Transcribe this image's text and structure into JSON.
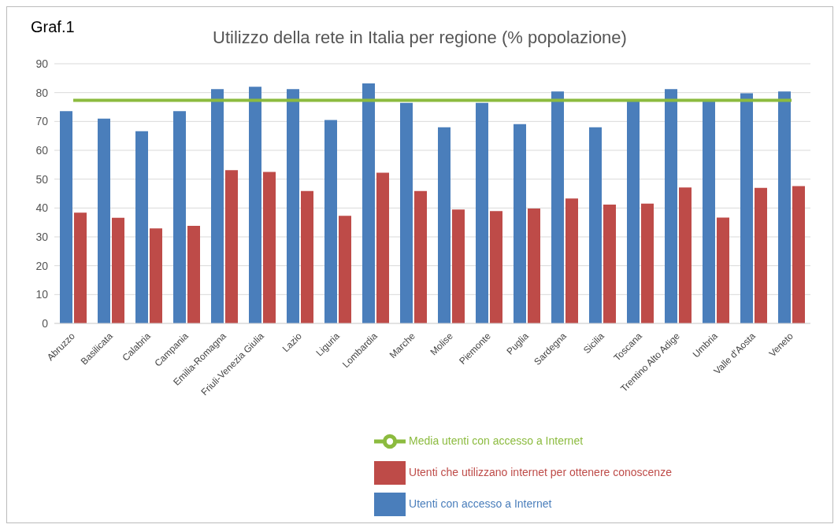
{
  "chart_data": {
    "type": "bar",
    "title": "Utilizzo della rete in Italia per regione (% popolazione)",
    "annotations": [
      "Graf.1"
    ],
    "categories": [
      "Abruzzo",
      "Basilicata",
      "Calabria",
      "Campania",
      "Emilia-Romagna",
      "Friuli-Venezia Giulia",
      "Lazio",
      "Liguria",
      "Lombardia",
      "Marche",
      "Molise",
      "Piemonte",
      "Puglia",
      "Sardegna",
      "Sicilia",
      "Toscana",
      "Trentino Alto Adige",
      "Umbria",
      "Valle d'Aosta",
      "Veneto"
    ],
    "series": [
      {
        "name": "Utenti con accesso a Internet",
        "color": "#4a7ebb",
        "values": [
          73.6,
          71,
          66.6,
          73.6,
          81.2,
          82,
          81.2,
          70.5,
          83.2,
          76.4,
          68,
          76.4,
          69.1,
          80.4,
          68,
          77.3,
          81.2,
          77.2,
          79.8,
          80.4
        ]
      },
      {
        "name": "Utenti che utilizzano internet per ottenere conoscenze",
        "color": "#be4b48",
        "values": [
          38.4,
          36.6,
          32.9,
          33.8,
          53.1,
          52.5,
          45.9,
          37.3,
          52.2,
          45.9,
          39.5,
          38.9,
          39.8,
          43.3,
          41.2,
          41.5,
          47.1,
          36.7,
          47,
          47.6
        ]
      },
      {
        "name": "Media utenti con accesso a Internet",
        "type": "line",
        "color": "#8cbb3f",
        "marker": "none",
        "line_style": "solid",
        "values": [
          77.3,
          77.3,
          77.3,
          77.3,
          77.3,
          77.3,
          77.3,
          77.3,
          77.3,
          77.3,
          77.3,
          77.3,
          77.3,
          77.3,
          77.3,
          77.3,
          77.3,
          77.3,
          77.3,
          77.3
        ]
      }
    ],
    "ylim": [
      0,
      90
    ],
    "yticks": [
      0,
      10,
      20,
      30,
      40,
      50,
      60,
      70,
      80,
      90
    ],
    "grid": "y",
    "legend": "bottom"
  }
}
